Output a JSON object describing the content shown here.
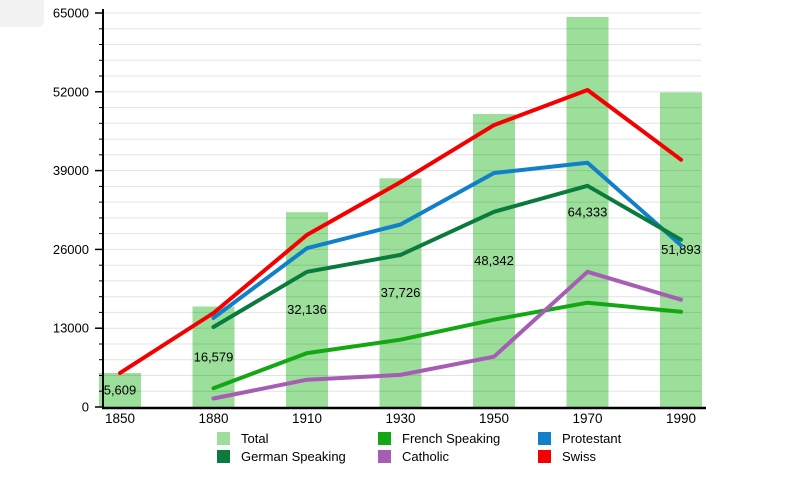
{
  "chart_data": {
    "type": "bar+line",
    "title": "",
    "xlabel": "",
    "ylabel": "",
    "categories": [
      "1850",
      "1880",
      "1910",
      "1930",
      "1950",
      "1970",
      "1990"
    ],
    "yticks": [
      0,
      13000,
      26000,
      39000,
      52000,
      65000
    ],
    "ylim": [
      0,
      65000
    ],
    "minor_gridline_step": 2600,
    "grid": true,
    "legend_position": "bottom",
    "bars": {
      "name": "Total",
      "color": "#9cdf9b",
      "values": [
        5609,
        16579,
        32136,
        37726,
        48342,
        64333,
        51893
      ],
      "value_labels": [
        "5,609",
        "16,579",
        "32,136",
        "37,726",
        "48,342",
        "64,333",
        "51,893"
      ]
    },
    "series": [
      {
        "name": "French Speaking",
        "color": "#13a813",
        "values": [
          null,
          3100,
          8900,
          11100,
          14400,
          17200,
          15700
        ]
      },
      {
        "name": "Catholic",
        "color": "#a55eb4",
        "values": [
          null,
          1400,
          4500,
          5300,
          8300,
          22300,
          17700
        ]
      },
      {
        "name": "Protestant",
        "color": "#117fc9",
        "values": [
          null,
          14700,
          26200,
          30100,
          38600,
          40300,
          26700
        ]
      },
      {
        "name": "German Speaking",
        "color": "#0a7a3d",
        "values": [
          null,
          13200,
          22300,
          25100,
          32200,
          36500,
          27600
        ]
      },
      {
        "name": "Swiss",
        "color": "#f50000",
        "values": [
          5609,
          15500,
          28400,
          37100,
          46500,
          52300,
          40800
        ]
      }
    ]
  },
  "legend": {
    "items": [
      {
        "label": "Total",
        "color": "#9cdf9b"
      },
      {
        "label": "French Speaking",
        "color": "#13a813"
      },
      {
        "label": "Protestant",
        "color": "#117fc9"
      },
      {
        "label": "German Speaking",
        "color": "#0a7a3d"
      },
      {
        "label": "Catholic",
        "color": "#a55eb4"
      },
      {
        "label": "Swiss",
        "color": "#f50000"
      }
    ]
  }
}
